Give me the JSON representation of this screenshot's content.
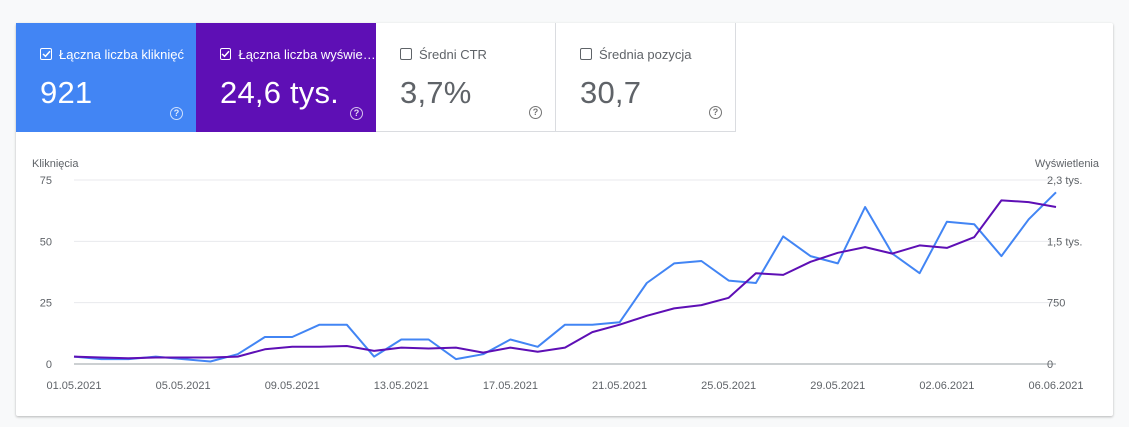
{
  "metrics": [
    {
      "label": "Łączna liczba kliknięć",
      "value": "921",
      "checked": true,
      "color": "#4285f4"
    },
    {
      "label": "Łączna liczba wyświetleń",
      "value": "24,6 tys.",
      "checked": true,
      "color": "#5e0fb5"
    },
    {
      "label": "Średni CTR",
      "value": "3,7%",
      "checked": false
    },
    {
      "label": "Średnia pozycja",
      "value": "30,7",
      "checked": false
    }
  ],
  "help_icon": "question-circle-icon",
  "chart_data": {
    "type": "line",
    "left_axis_label": "Kliknięcia",
    "right_axis_label": "Wyświetlenia",
    "x": [
      "01.05.2021",
      "02.05.2021",
      "03.05.2021",
      "04.05.2021",
      "05.05.2021",
      "06.05.2021",
      "07.05.2021",
      "08.05.2021",
      "09.05.2021",
      "10.05.2021",
      "11.05.2021",
      "12.05.2021",
      "13.05.2021",
      "14.05.2021",
      "15.05.2021",
      "16.05.2021",
      "17.05.2021",
      "18.05.2021",
      "19.05.2021",
      "20.05.2021",
      "21.05.2021",
      "22.05.2021",
      "23.05.2021",
      "24.05.2021",
      "25.05.2021",
      "26.05.2021",
      "27.05.2021",
      "28.05.2021",
      "29.05.2021",
      "30.05.2021",
      "31.05.2021",
      "01.06.2021",
      "02.06.2021",
      "03.06.2021",
      "04.06.2021",
      "05.06.2021",
      "06.06.2021"
    ],
    "x_tick_labels": [
      "01.05.2021",
      "05.05.2021",
      "09.05.2021",
      "13.05.2021",
      "17.05.2021",
      "21.05.2021",
      "25.05.2021",
      "29.05.2021",
      "02.06.2021",
      "06.06.2021"
    ],
    "left_ticks": [
      {
        "v": 0,
        "label": "0"
      },
      {
        "v": 25,
        "label": "25"
      },
      {
        "v": 50,
        "label": "50"
      },
      {
        "v": 75,
        "label": "75"
      }
    ],
    "right_ticks": [
      {
        "v": 0,
        "label": "0"
      },
      {
        "v": 750,
        "label": "750"
      },
      {
        "v": 1500,
        "label": "1,5 tys."
      },
      {
        "v": 2250,
        "label": "2,3 tys."
      }
    ],
    "left_ylim": [
      0,
      75
    ],
    "right_ylim": [
      0,
      2250
    ],
    "grid": true,
    "series": [
      {
        "name": "Kliknięcia",
        "axis": "left",
        "color": "#4285f4",
        "values": [
          3,
          2,
          2,
          3,
          2,
          1,
          4,
          11,
          11,
          16,
          16,
          3,
          10,
          10,
          2,
          4,
          10,
          7,
          16,
          16,
          17,
          33,
          41,
          42,
          34,
          33,
          52,
          44,
          41,
          64,
          45,
          37,
          58,
          57,
          44,
          59,
          70
        ]
      },
      {
        "name": "Wyświetlenia",
        "axis": "right",
        "color": "#5e0fb5",
        "values": [
          90,
          80,
          70,
          80,
          80,
          80,
          90,
          180,
          210,
          210,
          220,
          160,
          200,
          190,
          200,
          140,
          200,
          150,
          200,
          390,
          480,
          590,
          680,
          720,
          810,
          1110,
          1090,
          1250,
          1360,
          1430,
          1350,
          1450,
          1420,
          1550,
          2000,
          1980,
          1920
        ]
      }
    ]
  }
}
